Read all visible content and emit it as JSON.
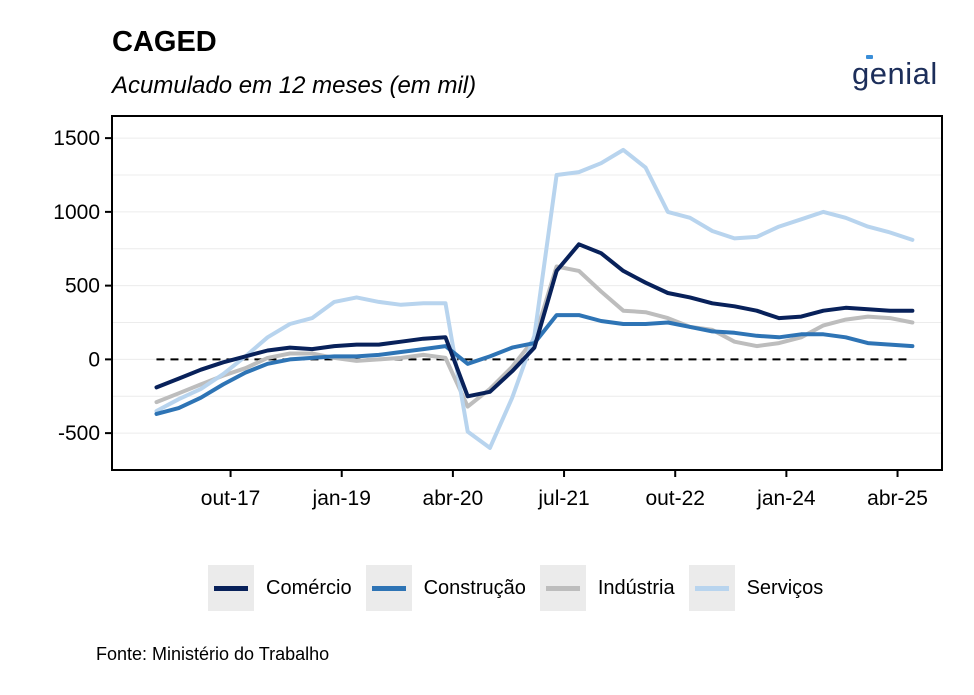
{
  "header": {
    "title": "CAGED",
    "subtitle": "Acumulado em 12 meses (em mil)"
  },
  "logo": {
    "text": "genial"
  },
  "source": "Fonte: Ministério do Trabalho",
  "colors": {
    "comercio": "#08215a",
    "construcao": "#2e74b5",
    "industria": "#bdbdbd",
    "servicos": "#b8d4ee"
  },
  "chart_data": {
    "type": "line",
    "title": "CAGED",
    "subtitle": "Acumulado em 12 meses (em mil)",
    "xlabel": "",
    "ylabel": "",
    "x_ticks": [
      {
        "label": "out-17",
        "date": "2017-10"
      },
      {
        "label": "jan-19",
        "date": "2019-01"
      },
      {
        "label": "abr-20",
        "date": "2020-04"
      },
      {
        "label": "jul-21",
        "date": "2021-07"
      },
      {
        "label": "out-22",
        "date": "2022-10"
      },
      {
        "label": "jan-24",
        "date": "2024-01"
      },
      {
        "label": "abr-25",
        "date": "2025-04"
      }
    ],
    "y_ticks": [
      -500,
      0,
      500,
      1000,
      1500
    ],
    "xlim": [
      "2016-06",
      "2025-10"
    ],
    "ylim": [
      -750,
      1650
    ],
    "reference_line": {
      "y": 0,
      "style": "dashed"
    },
    "legend_position": "bottom",
    "x": [
      "2016-12",
      "2017-03",
      "2017-06",
      "2017-09",
      "2017-12",
      "2018-03",
      "2018-06",
      "2018-09",
      "2018-12",
      "2019-03",
      "2019-06",
      "2019-09",
      "2019-12",
      "2020-03",
      "2020-06",
      "2020-09",
      "2020-12",
      "2021-03",
      "2021-06",
      "2021-09",
      "2021-12",
      "2022-03",
      "2022-06",
      "2022-09",
      "2022-12",
      "2023-03",
      "2023-06",
      "2023-09",
      "2023-12",
      "2024-03",
      "2024-06",
      "2024-09",
      "2024-12",
      "2025-03",
      "2025-06"
    ],
    "series": [
      {
        "name": "Comércio",
        "color": "#08215a",
        "values": [
          -190,
          -130,
          -70,
          -20,
          20,
          60,
          80,
          70,
          90,
          100,
          100,
          120,
          140,
          150,
          -250,
          -220,
          -80,
          80,
          600,
          780,
          720,
          600,
          520,
          450,
          420,
          380,
          360,
          330,
          280,
          290,
          330,
          350,
          340,
          330,
          330
        ]
      },
      {
        "name": "Construção",
        "color": "#2e74b5",
        "values": [
          -370,
          -330,
          -260,
          -170,
          -90,
          -30,
          0,
          10,
          20,
          20,
          30,
          50,
          70,
          90,
          -30,
          20,
          80,
          110,
          300,
          300,
          260,
          240,
          240,
          250,
          220,
          190,
          180,
          160,
          150,
          170,
          170,
          150,
          110,
          100,
          90
        ]
      },
      {
        "name": "Indústria",
        "color": "#bdbdbd",
        "values": [
          -290,
          -230,
          -170,
          -110,
          -60,
          10,
          40,
          40,
          10,
          -10,
          0,
          10,
          30,
          10,
          -320,
          -200,
          -50,
          140,
          630,
          600,
          460,
          330,
          320,
          280,
          220,
          200,
          120,
          90,
          110,
          150,
          230,
          270,
          290,
          280,
          250
        ]
      },
      {
        "name": "Serviços",
        "color": "#b8d4ee",
        "values": [
          -350,
          -270,
          -200,
          -100,
          20,
          150,
          240,
          280,
          390,
          420,
          390,
          370,
          380,
          380,
          -490,
          -600,
          -260,
          160,
          1250,
          1270,
          1330,
          1420,
          1300,
          1000,
          960,
          870,
          820,
          830,
          900,
          950,
          1000,
          960,
          900,
          860,
          810
        ]
      }
    ]
  }
}
